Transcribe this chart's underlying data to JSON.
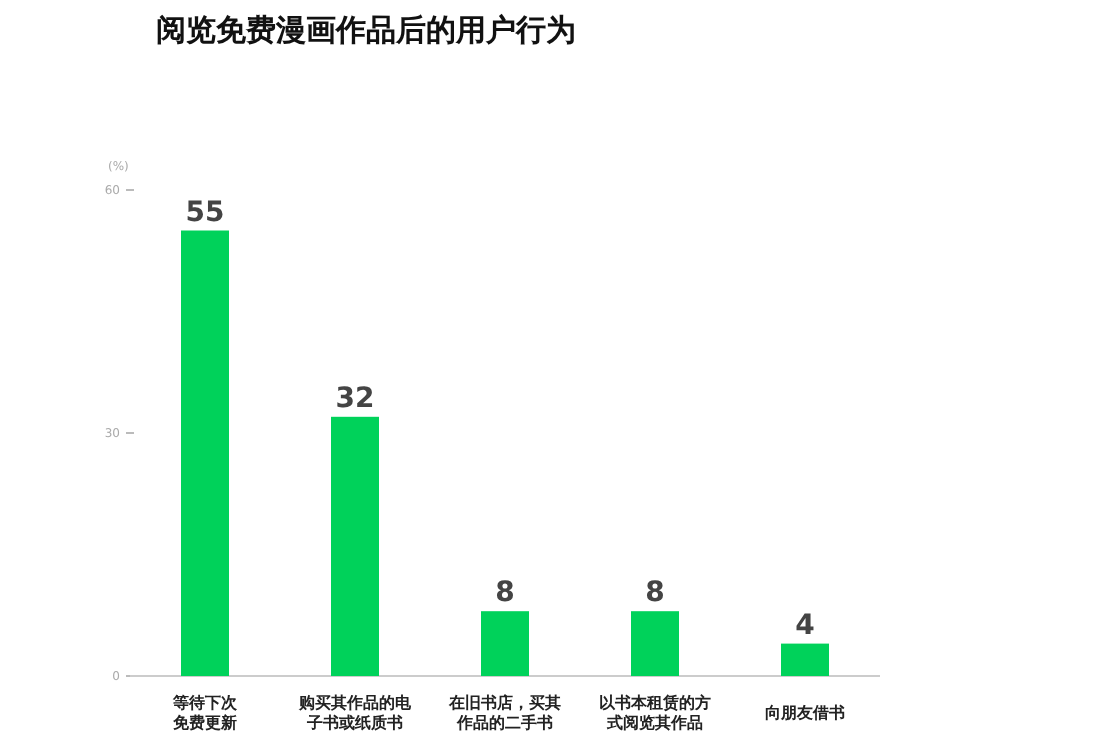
{
  "chart_data": {
    "type": "bar",
    "title": "阅览免费漫画作品后的用户行为",
    "ylabel": "(%)",
    "categories": [
      "等待下次免费更新",
      "购买其作品的电子书或纸质书",
      "在旧书店，买其作品的二手书",
      "以书本租赁的方式阅览其作品",
      "向朋友借书"
    ],
    "values": [
      55,
      32,
      8,
      8,
      4
    ],
    "color": "#00d25a",
    "ylim": [
      0,
      60
    ],
    "yticks": [
      0,
      30,
      60
    ],
    "data_labels": true,
    "grid": false
  }
}
